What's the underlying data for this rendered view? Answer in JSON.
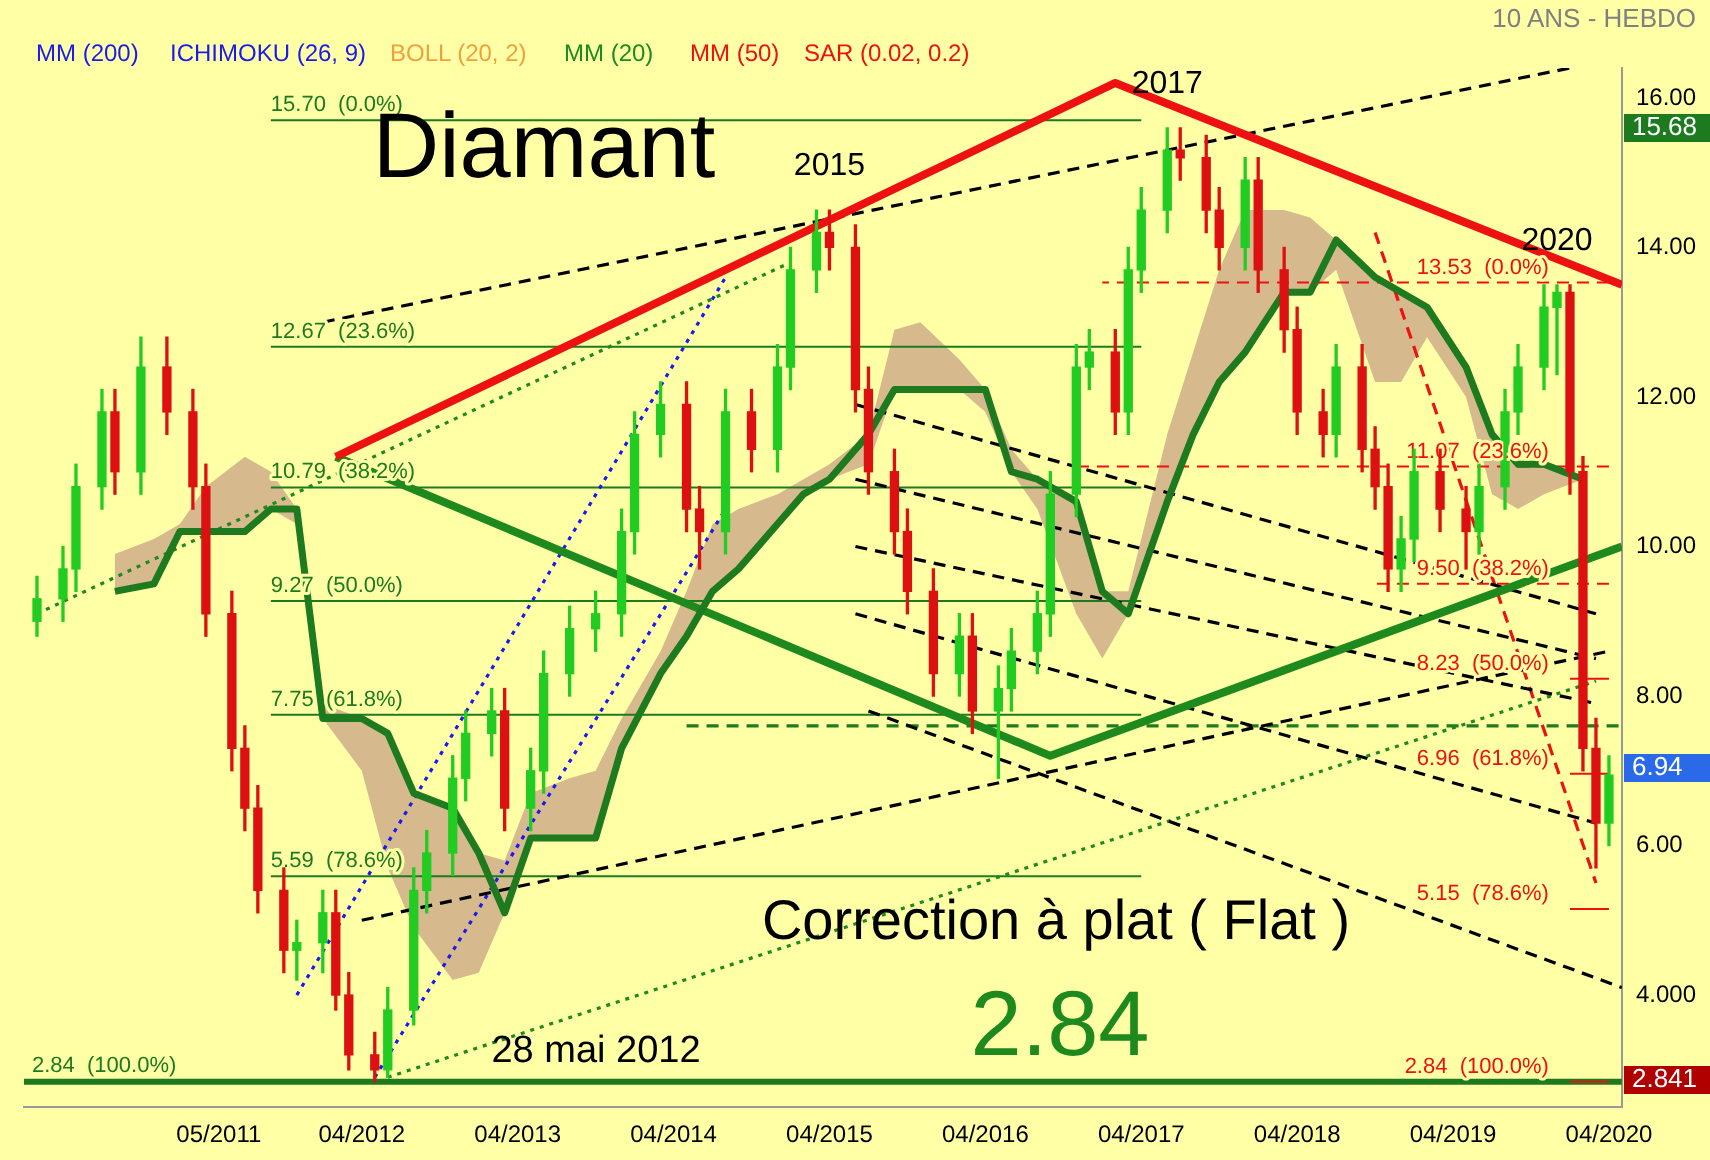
{
  "chart_data": {
    "type": "candlestick",
    "subtitle": "10 ANS - HEBDO",
    "x": [
      "2010-03",
      "2010-05",
      "2010-06",
      "2010-08",
      "2010-09",
      "2010-11",
      "2011-01",
      "2011-03",
      "2011-04",
      "2011-06",
      "2011-07",
      "2011-08",
      "2011-10",
      "2011-11",
      "2012-01",
      "2012-02",
      "2012-03",
      "2012-05",
      "2012-06",
      "2012-08",
      "2012-09",
      "2012-11",
      "2012-12",
      "2013-02",
      "2013-03",
      "2013-05",
      "2013-06",
      "2013-08",
      "2013-10",
      "2013-12",
      "2014-01",
      "2014-03",
      "2014-05",
      "2014-06",
      "2014-08",
      "2014-10",
      "2014-12",
      "2015-01",
      "2015-03",
      "2015-04",
      "2015-06",
      "2015-07",
      "2015-09",
      "2015-10",
      "2015-12",
      "2016-02",
      "2016-03",
      "2016-05",
      "2016-06",
      "2016-08",
      "2016-09",
      "2016-11",
      "2016-12",
      "2017-02",
      "2017-03",
      "2017-04",
      "2017-06",
      "2017-07",
      "2017-09",
      "2017-10",
      "2017-12",
      "2018-01",
      "2018-03",
      "2018-04",
      "2018-06",
      "2018-07",
      "2018-09",
      "2018-10",
      "2018-11",
      "2018-12",
      "2019-01",
      "2019-03",
      "2019-05",
      "2019-06",
      "2019-08",
      "2019-09",
      "2019-11",
      "2019-12",
      "2020-01",
      "2020-02",
      "2020-03",
      "2020-04"
    ],
    "ohlc": [
      [
        9.0,
        9.6,
        8.8,
        9.3
      ],
      [
        9.3,
        10.0,
        9.0,
        9.7
      ],
      [
        9.7,
        11.1,
        9.4,
        10.8
      ],
      [
        10.8,
        12.1,
        10.5,
        11.8
      ],
      [
        11.8,
        12.1,
        10.7,
        11.0
      ],
      [
        11.0,
        12.8,
        10.7,
        12.4
      ],
      [
        12.4,
        12.8,
        11.5,
        11.8
      ],
      [
        11.8,
        12.1,
        10.5,
        10.8
      ],
      [
        10.8,
        11.1,
        8.8,
        9.1
      ],
      [
        9.1,
        9.4,
        7.0,
        7.3
      ],
      [
        7.3,
        7.6,
        6.2,
        6.5
      ],
      [
        6.5,
        6.8,
        5.1,
        5.4
      ],
      [
        5.4,
        5.7,
        4.3,
        4.6
      ],
      [
        4.6,
        5.0,
        4.2,
        4.7
      ],
      [
        4.7,
        5.4,
        4.3,
        5.1
      ],
      [
        5.1,
        5.4,
        3.8,
        4.0
      ],
      [
        4.0,
        4.3,
        3.0,
        3.2
      ],
      [
        3.2,
        3.5,
        2.84,
        3.0
      ],
      [
        3.0,
        4.1,
        2.9,
        3.8
      ],
      [
        3.8,
        5.7,
        3.6,
        5.4
      ],
      [
        5.4,
        6.2,
        5.1,
        5.9
      ],
      [
        5.9,
        7.2,
        5.6,
        6.9
      ],
      [
        6.9,
        7.8,
        6.6,
        7.5
      ],
      [
        7.5,
        8.1,
        7.2,
        7.8
      ],
      [
        7.8,
        8.1,
        6.2,
        6.5
      ],
      [
        6.5,
        7.3,
        6.2,
        7.0
      ],
      [
        7.0,
        8.6,
        6.7,
        8.3
      ],
      [
        8.3,
        9.2,
        8.0,
        8.9
      ],
      [
        8.9,
        9.4,
        8.6,
        9.1
      ],
      [
        9.1,
        10.5,
        8.8,
        10.2
      ],
      [
        10.2,
        11.8,
        9.9,
        11.5
      ],
      [
        11.5,
        12.2,
        11.2,
        11.9
      ],
      [
        11.9,
        12.2,
        10.2,
        10.5
      ],
      [
        10.5,
        10.8,
        9.7,
        10.2
      ],
      [
        10.2,
        12.1,
        9.9,
        11.8
      ],
      [
        11.8,
        12.1,
        11.0,
        11.3
      ],
      [
        11.3,
        12.7,
        11.0,
        12.4
      ],
      [
        12.4,
        14.0,
        12.1,
        13.7
      ],
      [
        13.7,
        14.5,
        13.4,
        14.2
      ],
      [
        14.2,
        14.5,
        13.7,
        14.0
      ],
      [
        14.0,
        14.3,
        11.8,
        12.1
      ],
      [
        12.1,
        12.4,
        10.7,
        11.0
      ],
      [
        11.0,
        11.3,
        9.9,
        10.2
      ],
      [
        10.2,
        10.5,
        9.1,
        9.4
      ],
      [
        9.4,
        9.7,
        8.0,
        8.3
      ],
      [
        8.3,
        9.1,
        8.0,
        8.8
      ],
      [
        8.8,
        9.1,
        7.5,
        7.8
      ],
      [
        7.8,
        8.4,
        6.9,
        8.1
      ],
      [
        8.1,
        8.9,
        7.8,
        8.6
      ],
      [
        8.6,
        9.4,
        8.3,
        9.1
      ],
      [
        9.1,
        11.0,
        8.8,
        10.7
      ],
      [
        10.7,
        12.7,
        10.4,
        12.4
      ],
      [
        12.4,
        12.9,
        12.1,
        12.6
      ],
      [
        12.6,
        12.9,
        11.5,
        11.8
      ],
      [
        11.8,
        14.0,
        11.5,
        13.7
      ],
      [
        13.7,
        14.8,
        13.4,
        14.5
      ],
      [
        14.5,
        15.6,
        14.2,
        15.3
      ],
      [
        15.3,
        15.6,
        14.9,
        15.2
      ],
      [
        15.2,
        15.5,
        14.2,
        14.5
      ],
      [
        14.5,
        14.8,
        13.7,
        14.0
      ],
      [
        14.0,
        15.2,
        13.7,
        14.9
      ],
      [
        14.9,
        15.2,
        13.4,
        13.7
      ],
      [
        13.7,
        14.0,
        12.6,
        12.9
      ],
      [
        12.9,
        13.2,
        11.5,
        11.8
      ],
      [
        11.8,
        12.1,
        11.2,
        11.5
      ],
      [
        11.5,
        12.7,
        11.2,
        12.4
      ],
      [
        12.4,
        12.7,
        11.0,
        11.3
      ],
      [
        11.3,
        11.6,
        10.5,
        10.8
      ],
      [
        10.8,
        11.1,
        9.4,
        9.7
      ],
      [
        9.7,
        10.4,
        9.4,
        10.1
      ],
      [
        10.1,
        11.3,
        9.8,
        11.0
      ],
      [
        11.0,
        11.3,
        10.2,
        10.5
      ],
      [
        10.5,
        10.8,
        9.7,
        10.2
      ],
      [
        10.2,
        11.1,
        9.9,
        10.8
      ],
      [
        10.8,
        12.1,
        10.5,
        11.8
      ],
      [
        11.8,
        12.7,
        11.5,
        12.4
      ],
      [
        12.4,
        13.5,
        12.1,
        13.2
      ],
      [
        13.2,
        13.5,
        12.3,
        13.4
      ],
      [
        13.4,
        13.5,
        10.7,
        11.0
      ],
      [
        11.0,
        11.2,
        7.0,
        7.3
      ],
      [
        7.3,
        7.7,
        5.7,
        6.3
      ],
      [
        6.3,
        7.2,
        6.0,
        6.94
      ]
    ],
    "series": [
      {
        "type": "line",
        "color": "#1e7a1e",
        "x": [
          "2010-09",
          "2010-12",
          "2011-02",
          "2011-04",
          "2011-07",
          "2011-09",
          "2011-11",
          "2012-01",
          "2012-04",
          "2012-06",
          "2012-08",
          "2012-11",
          "2013-01",
          "2013-03",
          "2013-05",
          "2013-08",
          "2013-10",
          "2013-12",
          "2014-03",
          "2014-05",
          "2014-07",
          "2014-09",
          "2014-12",
          "2015-02",
          "2015-04",
          "2015-07",
          "2015-09",
          "2015-11",
          "2016-02",
          "2016-04",
          "2016-06",
          "2016-08",
          "2016-11",
          "2017-01",
          "2017-03",
          "2017-06",
          "2017-08",
          "2017-10",
          "2017-12",
          "2018-03",
          "2018-05",
          "2018-07",
          "2018-10",
          "2018-12",
          "2019-02",
          "2019-05",
          "2019-07",
          "2019-09",
          "2019-11",
          "2020-02"
        ],
        "values": [
          9.4,
          9.5,
          10.2,
          10.2,
          10.2,
          10.5,
          10.5,
          7.7,
          7.7,
          7.5,
          6.7,
          6.5,
          5.9,
          5.1,
          6.1,
          6.1,
          6.1,
          7.3,
          8.3,
          8.8,
          9.4,
          9.7,
          10.3,
          10.7,
          10.9,
          11.5,
          12.1,
          12.1,
          12.1,
          12.1,
          11.0,
          10.9,
          10.6,
          9.4,
          9.1,
          10.6,
          11.5,
          12.2,
          12.6,
          13.4,
          13.4,
          14.1,
          13.6,
          13.4,
          13.2,
          12.4,
          11.5,
          11.1,
          11.1,
          10.9
        ],
        "lower": [
          9.4,
          9.5,
          10.2,
          10.2,
          10.2,
          10.5,
          10.3,
          7.7,
          7.0,
          5.7,
          4.9,
          4.2,
          4.3,
          5.1,
          6.1,
          6.1,
          6.1,
          7.3,
          8.3,
          8.8,
          9.4,
          9.7,
          10.3,
          10.7,
          10.9,
          11.1,
          12.1,
          12.1,
          12.1,
          11.8,
          11.0,
          10.5,
          9.1,
          8.5,
          9.1,
          10.6,
          11.5,
          12.2,
          12.6,
          13.4,
          13.4,
          13.7,
          12.2,
          12.2,
          12.8,
          12.0,
          10.7,
          10.5,
          10.7,
          10.9
        ],
        "upper": [
          9.9,
          10.1,
          10.3,
          10.8,
          11.2,
          11.0,
          10.5,
          7.9,
          7.7,
          7.5,
          6.7,
          6.5,
          5.9,
          5.8,
          6.7,
          6.9,
          7.0,
          7.7,
          8.6,
          9.4,
          10.3,
          10.5,
          10.7,
          10.9,
          11.1,
          11.5,
          12.9,
          13.0,
          12.5,
          12.1,
          11.3,
          10.9,
          10.6,
          9.4,
          9.4,
          11.5,
          12.6,
          13.7,
          14.5,
          14.5,
          14.4,
          14.1,
          13.6,
          13.4,
          13.2,
          12.4,
          11.5,
          11.1,
          11.1,
          10.9
        ]
      },
      {
        "type": "line",
        "color": "#ee1111",
        "x": [
          "2012-02",
          "2017-02",
          "2020-05"
        ],
        "values": [
          11.2,
          16.2,
          13.5
        ]
      },
      {
        "type": "line",
        "color": "#1e8a1e",
        "x": [
          "2012-02",
          "2016-09",
          "2020-05"
        ],
        "values": [
          11.2,
          7.2,
          10.0
        ]
      },
      {
        "type": "line",
        "color": "#000000",
        "line_style": "dashed",
        "x": [
          "2012-01",
          "2020-01"
        ],
        "values": [
          13.0,
          16.4
        ]
      },
      {
        "type": "line",
        "color": "#000000",
        "line_style": "dashed",
        "x": [
          "2015-06",
          "2020-03"
        ],
        "values": [
          11.9,
          9.1
        ]
      },
      {
        "type": "line",
        "color": "#000000",
        "line_style": "dashed",
        "x": [
          "2015-06",
          "2020-03"
        ],
        "values": [
          10.9,
          8.5
        ]
      },
      {
        "type": "line",
        "color": "#000000",
        "line_style": "dashed",
        "x": [
          "2015-06",
          "2020-03"
        ],
        "values": [
          10.0,
          7.9
        ]
      },
      {
        "type": "line",
        "color": "#000000",
        "line_style": "dashed",
        "x": [
          "2015-06",
          "2020-03"
        ],
        "values": [
          9.1,
          6.3
        ]
      },
      {
        "type": "line",
        "color": "#000000",
        "line_style": "dashed",
        "x": [
          "2015-07",
          "2020-05"
        ],
        "values": [
          7.8,
          4.1
        ]
      },
      {
        "type": "line",
        "color": "#000000",
        "line_style": "dashed",
        "x": [
          "2012-04",
          "2020-04"
        ],
        "values": [
          5.0,
          8.6
        ]
      },
      {
        "type": "line",
        "color": "#1e8a1e",
        "line_style": "dotted",
        "x": [
          "2012-06",
          "2020-03"
        ],
        "values": [
          2.9,
          8.2
        ]
      },
      {
        "type": "line",
        "color": "#1e8a1e",
        "line_style": "dotted",
        "x": [
          "2010-03",
          "2015-01"
        ],
        "values": [
          9.1,
          13.8
        ]
      },
      {
        "type": "line",
        "color": "#1a1aee",
        "line_style": "dotted",
        "x": [
          "2011-11",
          "2014-08"
        ],
        "values": [
          4.0,
          13.6
        ]
      },
      {
        "type": "line",
        "color": "#1a1aee",
        "line_style": "dotted",
        "x": [
          "2012-05",
          "2014-08"
        ],
        "values": [
          2.9,
          10.5
        ]
      },
      {
        "type": "line",
        "color": "#ee1111",
        "line_style": "dashed",
        "x": [
          "2018-10",
          "2020-03"
        ],
        "values": [
          14.2,
          5.5
        ]
      },
      {
        "type": "line",
        "color": "#1e7a1e",
        "line_style": "dashed",
        "x": [
          "2014-05",
          "2020-05"
        ],
        "values": [
          7.6,
          7.6
        ]
      },
      {
        "type": "line",
        "name": "15.70  (0.0%)",
        "color": "#1e7a1e",
        "x": [
          "2011-09",
          "2017-04"
        ],
        "values": [
          15.7,
          15.7
        ]
      },
      {
        "type": "line",
        "name": "12.67  (23.6%)",
        "color": "#1e7a1e",
        "x": [
          "2011-09",
          "2017-04"
        ],
        "values": [
          12.67,
          12.67
        ]
      },
      {
        "type": "line",
        "name": "10.79  (38.2%)",
        "color": "#1e7a1e",
        "x": [
          "2011-09",
          "2017-04"
        ],
        "values": [
          10.79,
          10.79
        ]
      },
      {
        "type": "line",
        "name": "9.27  (50.0%)",
        "color": "#1e7a1e",
        "x": [
          "2011-09",
          "2017-04"
        ],
        "values": [
          9.27,
          9.27
        ]
      },
      {
        "type": "line",
        "name": "7.75  (61.8%)",
        "color": "#1e7a1e",
        "x": [
          "2011-09",
          "2017-04"
        ],
        "values": [
          7.75,
          7.75
        ]
      },
      {
        "type": "line",
        "name": "5.59  (78.6%)",
        "color": "#1e7a1e",
        "x": [
          "2011-09",
          "2017-04"
        ],
        "values": [
          5.59,
          5.59
        ]
      },
      {
        "type": "line",
        "name": "13.53  (0.0%)",
        "color": "#ee1111",
        "line_style": "dashed",
        "x": [
          "2020-04",
          "2017-01"
        ],
        "values": [
          13.53,
          13.53
        ]
      },
      {
        "type": "line",
        "name": "11.07  (23.6%)",
        "color": "#ee1111",
        "line_style": "dashed",
        "x": [
          "2020-04",
          "2016-11"
        ],
        "values": [
          11.07,
          11.07
        ]
      },
      {
        "type": "line",
        "name": "9.50  (38.2%)",
        "color": "#ee1111",
        "line_style": "dashed",
        "x": [
          "2020-04",
          "2018-10"
        ],
        "values": [
          9.5,
          9.5
        ]
      },
      {
        "type": "line",
        "name": "8.23  (50.0%)",
        "color": "#ee1111",
        "x": [
          "2020-04",
          "2020-01"
        ],
        "values": [
          8.23,
          8.23
        ]
      },
      {
        "type": "line",
        "name": "6.96  (61.8%)",
        "color": "#ee1111",
        "x": [
          "2020-04",
          "2020-01"
        ],
        "values": [
          6.96,
          6.96
        ]
      },
      {
        "type": "line",
        "name": "5.15  (78.6%)",
        "color": "#ee1111",
        "x": [
          "2020-04",
          "2020-01"
        ],
        "values": [
          5.15,
          5.15
        ]
      },
      {
        "type": "line",
        "name": "2.84  (100.0%)",
        "color": "#ee1111",
        "x": [
          "2020-04",
          "2020-01"
        ],
        "values": [
          2.84,
          2.84
        ]
      }
    ],
    "ref_lines": [
      {
        "axis": "y",
        "value": 2.84,
        "color": "#1e7a1e",
        "label": "2.84  (100.0%)"
      }
    ],
    "annotations": [
      "MM (200)",
      "ICHIMOKU (26, 9)",
      "BOLL (20, 2)",
      "MM (20)",
      "MM (50)",
      "SAR (0.02, 0.2)",
      "Diamant",
      "Correction à plat ( Flat )",
      "2.84",
      "28 mai 2012",
      {
        "text": "2015",
        "x": "2015-04",
        "y": 14.5
      },
      {
        "text": "2017",
        "x": "2017-06",
        "y": 15.6
      },
      {
        "text": "2020",
        "x": "2019-12",
        "y": 13.5
      },
      "15.68",
      "6.94",
      "2.841"
    ],
    "xlim": [
      "2010-02",
      "2020-05"
    ],
    "xticks": [
      {
        "value": "2011-05",
        "label": "05/2011"
      },
      {
        "value": "2012-04",
        "label": "04/2012"
      },
      {
        "value": "2013-04",
        "label": "04/2013"
      },
      {
        "value": "2014-04",
        "label": "04/2014"
      },
      {
        "value": "2015-04",
        "label": "04/2015"
      },
      {
        "value": "2016-04",
        "label": "04/2016"
      },
      {
        "value": "2017-04",
        "label": "04/2017"
      },
      {
        "value": "2018-04",
        "label": "04/2018"
      },
      {
        "value": "2019-04",
        "label": "04/2019"
      },
      {
        "value": "2020-04",
        "label": "04/2020"
      }
    ],
    "ylim": [
      2.5,
      16.4
    ],
    "yticks": [
      {
        "value": 4,
        "label": "4.000"
      },
      {
        "value": 6,
        "label": "6.00"
      },
      {
        "value": 8,
        "label": "8.00"
      },
      {
        "value": 10,
        "label": "10.00"
      },
      {
        "value": 12,
        "label": "12.00"
      },
      {
        "value": 14,
        "label": "14.00"
      },
      {
        "value": 16,
        "label": "16.00"
      }
    ]
  }
}
